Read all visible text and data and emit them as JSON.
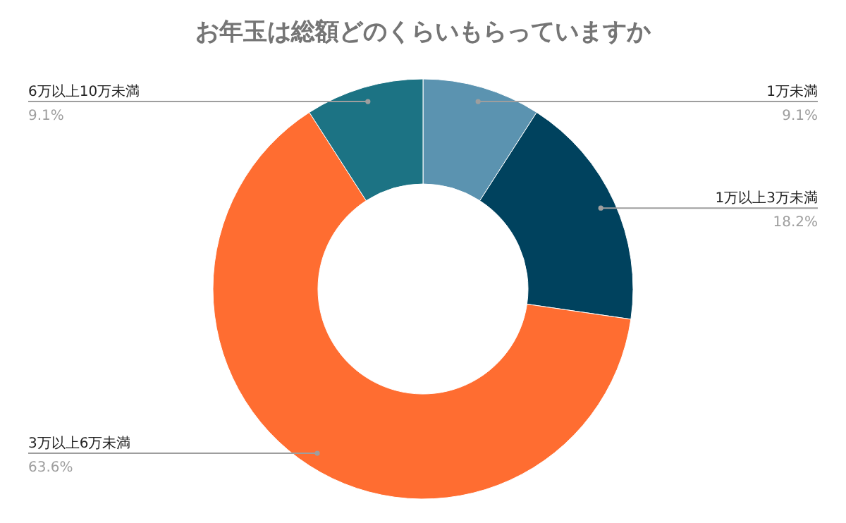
{
  "chart_data": {
    "type": "donut",
    "title": "お年玉は総額どのくらいもらっていますか",
    "categories": [
      "1万未満",
      "1万以上3万未満",
      "3万以上6万未満",
      "6万以上10万未満"
    ],
    "values": [
      9.1,
      18.2,
      63.6,
      9.1
    ],
    "value_labels": [
      "9.1%",
      "18.2%",
      "63.6%",
      "9.1%"
    ],
    "colors": [
      "#5b93b0",
      "#00425e",
      "#ff6d31",
      "#1c7384"
    ]
  }
}
